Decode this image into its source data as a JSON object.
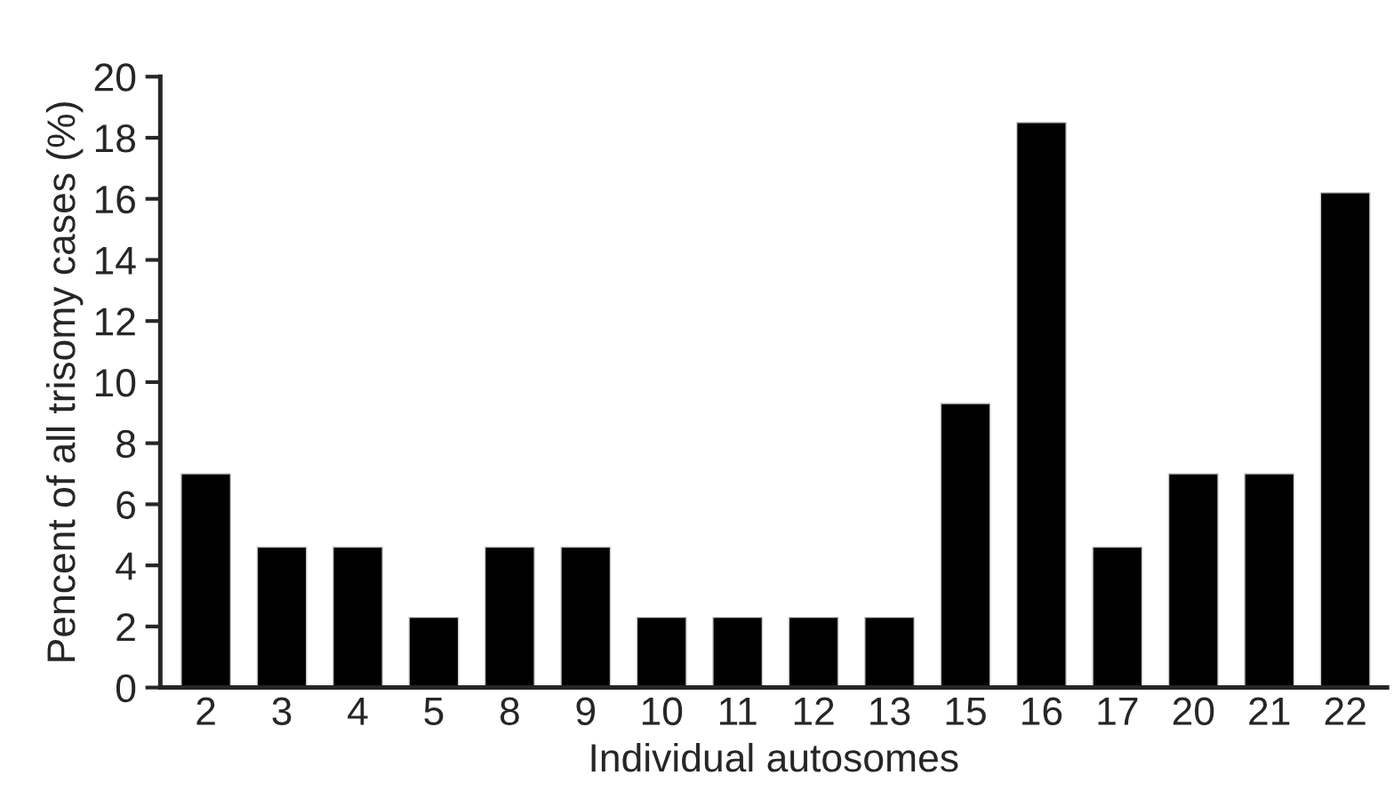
{
  "chart_data": {
    "type": "bar",
    "xlabel": "Individual autosomes",
    "ylabel": "Pencent of all trisomy cases (%)",
    "categories": [
      "2",
      "3",
      "4",
      "5",
      "8",
      "9",
      "10",
      "11",
      "12",
      "13",
      "15",
      "16",
      "17",
      "20",
      "21",
      "22"
    ],
    "values": [
      7.0,
      4.6,
      4.6,
      2.3,
      4.6,
      4.6,
      2.3,
      2.3,
      2.3,
      2.3,
      9.3,
      18.5,
      4.6,
      7.0,
      7.0,
      16.2
    ],
    "color": "#000000",
    "ylim": [
      0,
      20
    ],
    "yticks": [
      0,
      2,
      4,
      6,
      8,
      10,
      12,
      14,
      16,
      18,
      20
    ],
    "grid": false,
    "legend": false
  }
}
